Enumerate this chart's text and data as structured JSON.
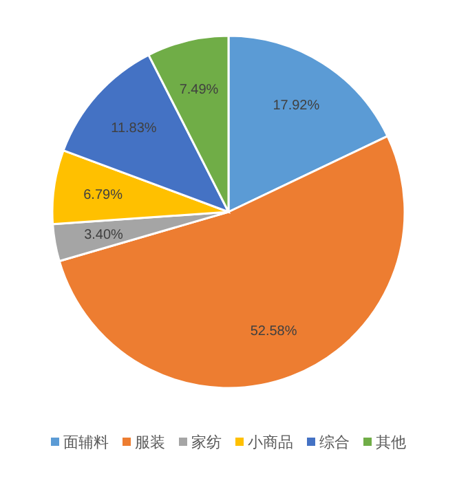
{
  "chart_data": {
    "type": "pie",
    "categories": [
      "面辅料",
      "服装",
      "家纺",
      "小商品",
      "综合",
      "其他"
    ],
    "values": [
      17.92,
      52.58,
      3.4,
      6.79,
      11.83,
      7.49
    ],
    "value_labels": [
      "17.92%",
      "52.58%",
      "3.40%",
      "6.79%",
      "11.83%",
      "7.49%"
    ],
    "colors": [
      "#5b9bd5",
      "#ed7d31",
      "#a5a5a5",
      "#ffc000",
      "#4472c4",
      "#70ad47"
    ],
    "legend": "bottom"
  }
}
